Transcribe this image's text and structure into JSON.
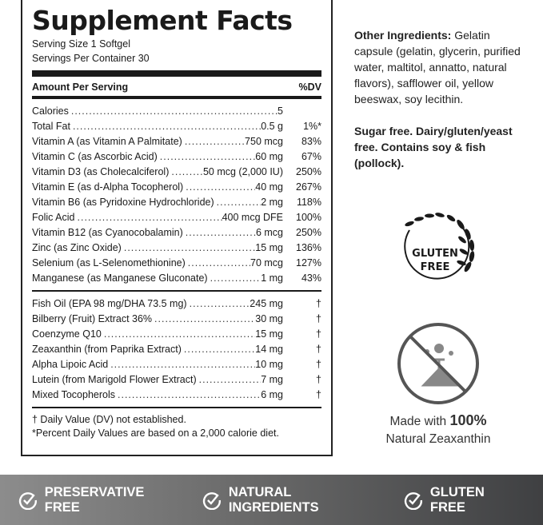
{
  "label": {
    "title": "Supplement Facts",
    "serving_size": "Serving Size 1 Softgel",
    "servings_per_container": "Servings Per Container 30",
    "amount_header": "Amount Per Serving",
    "dv_header": "%DV",
    "nutrients": [
      {
        "name": "Calories",
        "amount": "5",
        "dv": ""
      },
      {
        "name": "Total Fat",
        "amount": "0.5 g",
        "dv": "1%*"
      },
      {
        "name": "Vitamin A (as Vitamin A Palmitate)",
        "amount": "750 mcg",
        "dv": "83%"
      },
      {
        "name": "Vitamin C (as Ascorbic Acid)",
        "amount": "60 mg",
        "dv": "67%"
      },
      {
        "name": "Vitamin D3 (as Cholecalciferol)",
        "amount": "50 mcg (2,000 IU)",
        "dv": "250%"
      },
      {
        "name": "Vitamin E (as d-Alpha Tocopherol)",
        "amount": "40 mg",
        "dv": "267%"
      },
      {
        "name": "Vitamin B6 (as Pyridoxine Hydrochloride)",
        "amount": "2 mg",
        "dv": "118%"
      },
      {
        "name": "Folic Acid",
        "amount": "400 mcg DFE",
        "dv": "100%"
      },
      {
        "name": "Vitamin B12 (as Cyanocobalamin)",
        "amount": "6 mcg",
        "dv": "250%"
      },
      {
        "name": "Zinc (as Zinc Oxide)",
        "amount": "15 mg",
        "dv": "136%"
      },
      {
        "name": "Selenium (as L-Selenomethionine)",
        "amount": "70 mcg",
        "dv": "127%"
      },
      {
        "name": "Manganese (as Manganese Gluconate)",
        "amount": "1 mg",
        "dv": "43%"
      }
    ],
    "others": [
      {
        "name": "Fish Oil (EPA 98 mg/DHA 73.5 mg)",
        "amount": "245 mg",
        "dv": "†"
      },
      {
        "name": "Bilberry (Fruit) Extract 36%",
        "amount": "30 mg",
        "dv": "†"
      },
      {
        "name": "Coenzyme Q10",
        "amount": "15 mg",
        "dv": "†"
      },
      {
        "name": "Zeaxanthin (from Paprika Extract)",
        "amount": "14 mg",
        "dv": "†"
      },
      {
        "name": "Alpha Lipoic Acid",
        "amount": "10 mg",
        "dv": "†"
      },
      {
        "name": "Lutein (from Marigold Flower Extract)",
        "amount": "7 mg",
        "dv": "†"
      },
      {
        "name": "Mixed Tocopherols",
        "amount": "6 mg",
        "dv": "†"
      }
    ],
    "footnote1": "† Daily Value (DV) not established.",
    "footnote2": "*Percent Daily Values are based on a 2,000 calorie diet."
  },
  "right": {
    "other_label": "Other Ingredients:",
    "other_text": " Gelatin capsule (gelatin, glycerin, purified water, maltitol, annatto, natural flavors), safflower oil, yellow beeswax, soy lecithin.",
    "allergen": "Sugar free. Dairy/gluten/yeast free. Contains soy & fish (pollock).",
    "badge_gluten_line1": "GLUTEN",
    "badge_gluten_line2": "FREE",
    "made_with": "Made with ",
    "made_pct": "100%",
    "made_line2": "Natural Zeaxanthin"
  },
  "banner": {
    "features": [
      "PRESERVATIVE FREE",
      "NATURAL INGREDIENTS",
      "GLUTEN FREE"
    ]
  }
}
